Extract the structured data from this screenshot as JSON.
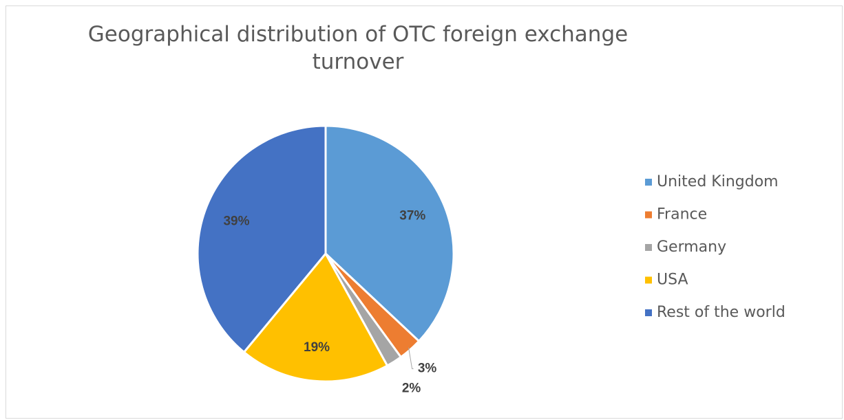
{
  "chart_data": {
    "type": "pie",
    "title": "Geographical distribution of OTC foreign exchange turnover",
    "categories": [
      "United Kingdom",
      "France",
      "Germany",
      "USA",
      "Rest of the world"
    ],
    "values": [
      37,
      3,
      2,
      19,
      39
    ],
    "value_labels": [
      "37%",
      "3%",
      "2%",
      "19%",
      "39%"
    ],
    "colors": [
      "#5b9bd5",
      "#ed7d31",
      "#a5a5a5",
      "#ffc000",
      "#4472c4"
    ],
    "legend": "right"
  }
}
